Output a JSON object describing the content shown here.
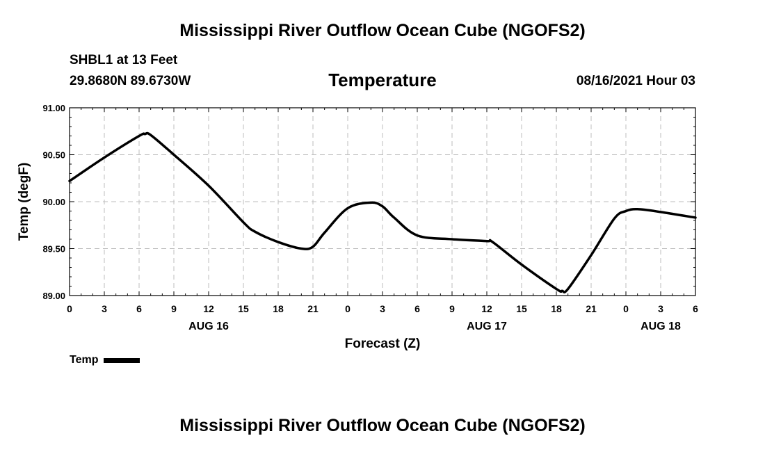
{
  "header": {
    "title": "Mississippi River Outflow Ocean Cube (NGOFS2)",
    "station": "SHBL1 at 13 Feet",
    "coords": "29.8680N  89.6730W",
    "variable": "Temperature",
    "datetime": "08/16/2021 Hour 03"
  },
  "footer": {
    "title": "Mississippi River Outflow Ocean Cube (NGOFS2)"
  },
  "legend": {
    "label": "Temp"
  },
  "chart_data": {
    "type": "line",
    "title": "Temperature",
    "xlabel": "Forecast (Z)",
    "ylabel": "Temp (degF)",
    "ylim": [
      89.0,
      91.0
    ],
    "xlim": [
      0,
      54
    ],
    "grid": true,
    "y_ticks": [
      89.0,
      89.5,
      90.0,
      90.5,
      91.0
    ],
    "y_tick_labels": [
      "89.00",
      "89.50",
      "90.00",
      "90.50",
      "91.00"
    ],
    "x_ticks": [
      0,
      3,
      6,
      9,
      12,
      15,
      18,
      21,
      24,
      27,
      30,
      33,
      36,
      39,
      42,
      45,
      48,
      51,
      54
    ],
    "x_tick_labels": [
      "0",
      "3",
      "6",
      "9",
      "12",
      "15",
      "18",
      "21",
      "0",
      "3",
      "6",
      "9",
      "12",
      "15",
      "18",
      "21",
      "0",
      "3",
      "6"
    ],
    "date_labels": [
      {
        "x": 12,
        "label": "AUG 16"
      },
      {
        "x": 36,
        "label": "AUG 17"
      },
      {
        "x": 51,
        "label": "AUG 18"
      }
    ],
    "series": [
      {
        "name": "Temp",
        "color": "#000000",
        "x": [
          0,
          3,
          6,
          6.5,
          7,
          9,
          12,
          15,
          16,
          18,
          20,
          21,
          22,
          24,
          26,
          27,
          28,
          30,
          33,
          36,
          36.5,
          39,
          42,
          42.5,
          43,
          45,
          47,
          48,
          49,
          51,
          54
        ],
        "values": [
          90.22,
          90.47,
          90.7,
          90.72,
          90.71,
          90.5,
          90.17,
          89.78,
          89.68,
          89.57,
          89.5,
          89.52,
          89.67,
          89.93,
          89.99,
          89.95,
          89.83,
          89.64,
          89.6,
          89.58,
          89.57,
          89.33,
          89.07,
          89.05,
          89.07,
          89.43,
          89.82,
          89.9,
          89.92,
          89.89,
          89.83
        ]
      }
    ]
  }
}
